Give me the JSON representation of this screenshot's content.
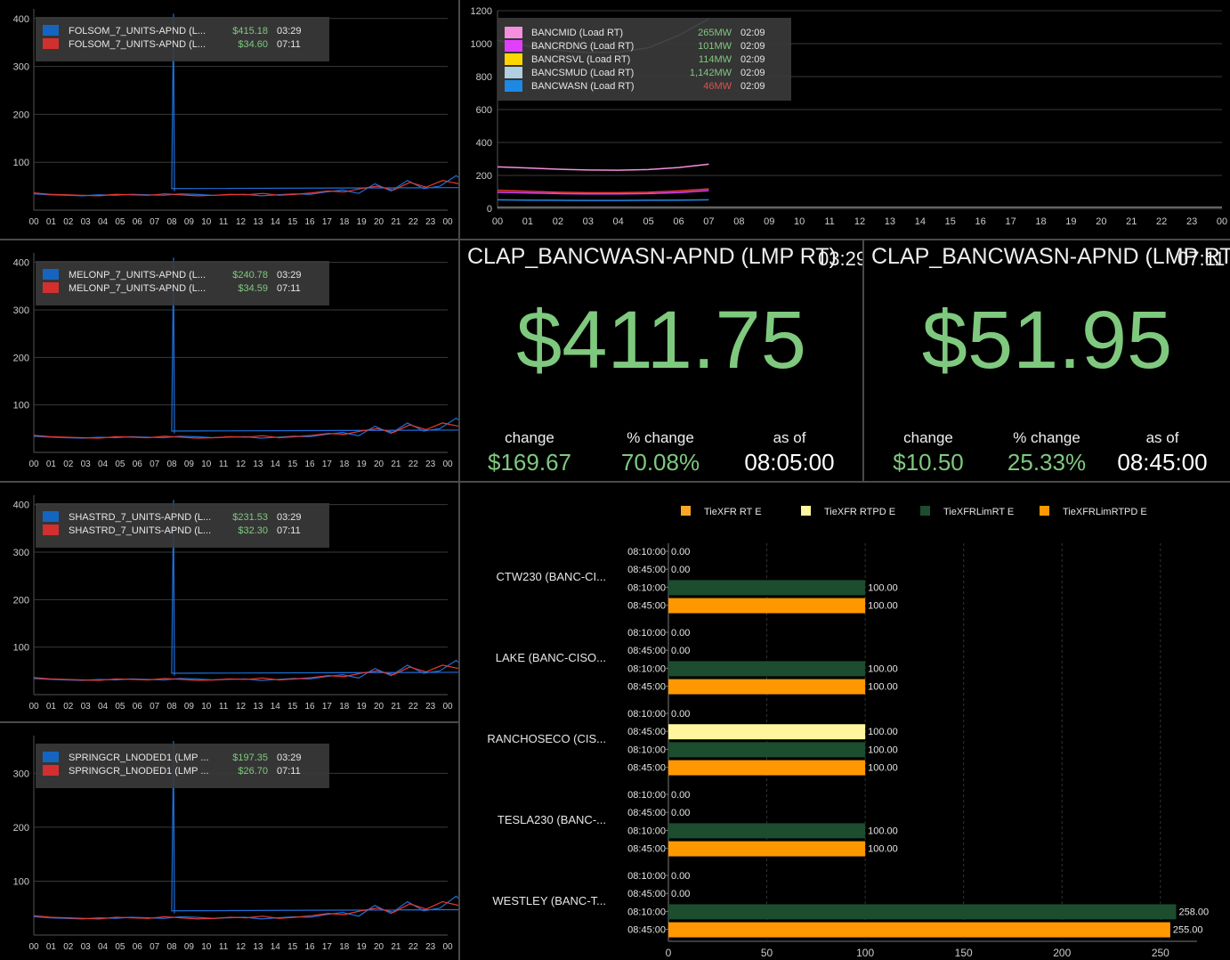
{
  "hour_ticks": [
    "00",
    "01",
    "02",
    "03",
    "04",
    "05",
    "06",
    "07",
    "08",
    "09",
    "10",
    "11",
    "12",
    "13",
    "14",
    "15",
    "16",
    "17",
    "18",
    "19",
    "20",
    "21",
    "22",
    "23",
    "00"
  ],
  "lmp_charts": [
    {
      "id": "folsom",
      "y_ticks": [
        100,
        200,
        300,
        400
      ],
      "legend": [
        {
          "name": "FOLSOM_7_UNITS-APND (L...",
          "value": "$415.18",
          "time": "03:29",
          "color": "#1565c0"
        },
        {
          "name": "FOLSOM_7_UNITS-APND (L...",
          "value": "$34.60",
          "time": "07:11",
          "color": "#d32f2f"
        }
      ]
    },
    {
      "id": "melonp",
      "y_ticks": [
        100,
        200,
        300,
        400
      ],
      "legend": [
        {
          "name": "MELONP_7_UNITS-APND (L...",
          "value": "$240.78",
          "time": "03:29",
          "color": "#1565c0"
        },
        {
          "name": "MELONP_7_UNITS-APND (L...",
          "value": "$34.59",
          "time": "07:11",
          "color": "#d32f2f"
        }
      ]
    },
    {
      "id": "shastrd",
      "y_ticks": [
        100,
        200,
        300,
        400
      ],
      "legend": [
        {
          "name": "SHASTRD_7_UNITS-APND (L...",
          "value": "$231.53",
          "time": "03:29",
          "color": "#1565c0"
        },
        {
          "name": "SHASTRD_7_UNITS-APND (L...",
          "value": "$32.30",
          "time": "07:11",
          "color": "#d32f2f"
        }
      ]
    },
    {
      "id": "springcr",
      "y_ticks": [
        100,
        200,
        300
      ],
      "legend": [
        {
          "name": "SPRINGCR_LNODED1 (LMP ...",
          "value": "$197.35",
          "time": "03:29",
          "color": "#1565c0"
        },
        {
          "name": "SPRINGCR_LNODED1 (LMP ...",
          "value": "$26.70",
          "time": "07:11",
          "color": "#d32f2f"
        }
      ]
    }
  ],
  "load_chart": {
    "y_ticks": [
      0,
      200,
      400,
      600,
      800,
      1000,
      1200
    ],
    "legend": [
      {
        "name": "BANCMID (Load RT)",
        "value": "265MW",
        "time": "02:09",
        "color": "#f48fde",
        "value_color": "#7fc97f"
      },
      {
        "name": "BANCRDNG (Load RT)",
        "value": "101MW",
        "time": "02:09",
        "color": "#e040fb",
        "value_color": "#7fc97f"
      },
      {
        "name": "BANCRSVL (Load RT)",
        "value": "114MW",
        "time": "02:09",
        "color": "#ffd600",
        "value_color": "#7fc97f"
      },
      {
        "name": "BANCSMUD (Load RT)",
        "value": "1,142MW",
        "time": "02:09",
        "color": "#b0cfe0",
        "value_color": "#7fc97f"
      },
      {
        "name": "BANCWASN (Load RT)",
        "value": "46MW",
        "time": "02:09",
        "color": "#1e88e5",
        "value_color": "#e05050"
      }
    ]
  },
  "kpis": [
    {
      "title": "CLAP_BANCWASN-APND (LMP RT)",
      "time": "03:29",
      "value": "$411.75",
      "change_label": "change",
      "change": "$169.67",
      "pct_label": "% change",
      "pct": "70.08%",
      "asof_label": "as of",
      "asof": "08:05:00"
    },
    {
      "title": "CLAP_BANCWASN-APND (LMP RTP",
      "time": "07:11",
      "value": "$51.95",
      "change_label": "change",
      "change": "$10.50",
      "pct_label": "% change",
      "pct": "25.33%",
      "asof_label": "as of",
      "asof": "08:45:00"
    }
  ],
  "bar_chart": {
    "legend": [
      {
        "name": "TieXFR RT E",
        "color": "#f9a825"
      },
      {
        "name": "TieXFR RTPD E",
        "color": "#fff59d"
      },
      {
        "name": "TieXFRLimRT E",
        "color": "#1b4d2e"
      },
      {
        "name": "TieXFRLimRTPD E",
        "color": "#ff9800"
      }
    ],
    "x_ticks": [
      0,
      50,
      100,
      150,
      200,
      250
    ],
    "groups": [
      {
        "name": "CTW230 (BANC-CI...",
        "bars": [
          {
            "time": "08:10:00",
            "value": 0,
            "label": "0.00",
            "color": "#f9a825"
          },
          {
            "time": "08:45:00",
            "value": 0,
            "label": "0.00",
            "color": "#fff59d"
          },
          {
            "time": "08:10:00",
            "value": 100,
            "label": "100.00",
            "color": "#1b4d2e"
          },
          {
            "time": "08:45:00",
            "value": 100,
            "label": "100.00",
            "color": "#ff9800"
          }
        ]
      },
      {
        "name": "LAKE (BANC-CISO...",
        "bars": [
          {
            "time": "08:10:00",
            "value": 0,
            "label": "0.00",
            "color": "#f9a825"
          },
          {
            "time": "08:45:00",
            "value": 0,
            "label": "0.00",
            "color": "#fff59d"
          },
          {
            "time": "08:10:00",
            "value": 100,
            "label": "100.00",
            "color": "#1b4d2e"
          },
          {
            "time": "08:45:00",
            "value": 100,
            "label": "100.00",
            "color": "#ff9800"
          }
        ]
      },
      {
        "name": "RANCHOSECO (CIS...",
        "bars": [
          {
            "time": "08:10:00",
            "value": 0,
            "label": "0.00",
            "color": "#f9a825"
          },
          {
            "time": "08:45:00",
            "value": 100,
            "label": "100.00",
            "color": "#fff59d"
          },
          {
            "time": "08:10:00",
            "value": 100,
            "label": "100.00",
            "color": "#1b4d2e"
          },
          {
            "time": "08:45:00",
            "value": 100,
            "label": "100.00",
            "color": "#ff9800"
          }
        ]
      },
      {
        "name": "TESLA230 (BANC-...",
        "bars": [
          {
            "time": "08:10:00",
            "value": 0,
            "label": "0.00",
            "color": "#f9a825"
          },
          {
            "time": "08:45:00",
            "value": 0,
            "label": "0.00",
            "color": "#fff59d"
          },
          {
            "time": "08:10:00",
            "value": 100,
            "label": "100.00",
            "color": "#1b4d2e"
          },
          {
            "time": "08:45:00",
            "value": 100,
            "label": "100.00",
            "color": "#ff9800"
          }
        ]
      },
      {
        "name": "WESTLEY (BANC-T...",
        "bars": [
          {
            "time": "08:10:00",
            "value": 0,
            "label": "0.00",
            "color": "#f9a825"
          },
          {
            "time": "08:45:00",
            "value": 0,
            "label": "0.00",
            "color": "#fff59d"
          },
          {
            "time": "08:10:00",
            "value": 258,
            "label": "258.00",
            "color": "#1b4d2e"
          },
          {
            "time": "08:45:00",
            "value": 255,
            "label": "255.00",
            "color": "#ff9800"
          }
        ]
      }
    ]
  }
}
